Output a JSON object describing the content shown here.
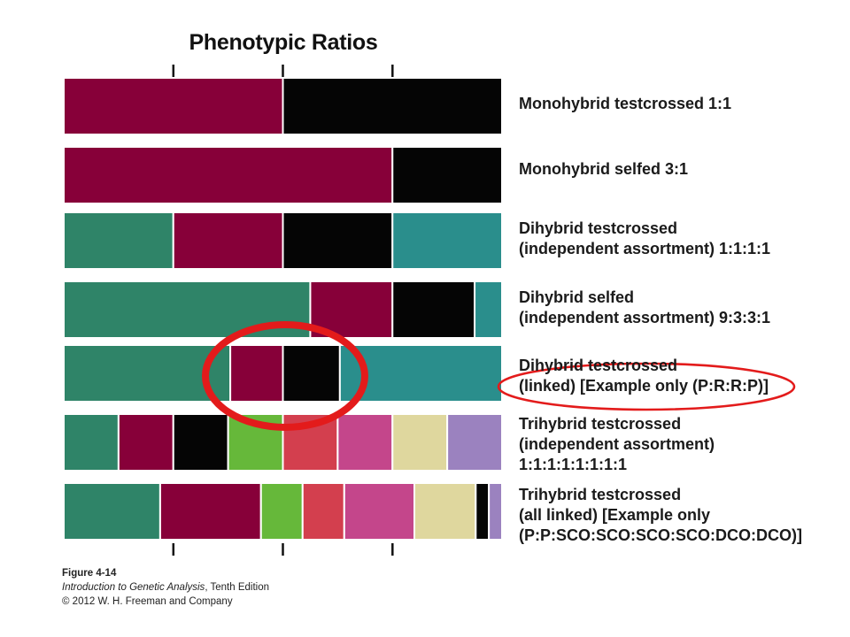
{
  "title": "Phenotypic Ratios",
  "colors": {
    "P1": "#2f8468",
    "R1": "#870039",
    "K": "#050505",
    "P2": "#2a8e8c",
    "G": "#66b83a",
    "RD": "#d33f4e",
    "PK": "#c4468b",
    "BG": "#dfd79e",
    "LV": "#9b82bf"
  },
  "rows": [
    {
      "label_lines": [
        "Monohybrid testcrossed 1:1"
      ],
      "segments": [
        {
          "fraction": 0.5,
          "color": "R1"
        },
        {
          "fraction": 0.5,
          "color": "K"
        }
      ]
    },
    {
      "label_lines": [
        "Monohybrid selfed 3:1"
      ],
      "segments": [
        {
          "fraction": 0.75,
          "color": "R1"
        },
        {
          "fraction": 0.25,
          "color": "K"
        }
      ]
    },
    {
      "label_lines": [
        "Dihybrid testcrossed",
        "(independent assortment) 1:1:1:1"
      ],
      "segments": [
        {
          "fraction": 0.25,
          "color": "P1"
        },
        {
          "fraction": 0.25,
          "color": "R1"
        },
        {
          "fraction": 0.25,
          "color": "K"
        },
        {
          "fraction": 0.25,
          "color": "P2"
        }
      ]
    },
    {
      "label_lines": [
        "Dihybrid selfed",
        "(independent assortment) 9:3:3:1"
      ],
      "segments": [
        {
          "fraction": 0.5625,
          "color": "P1"
        },
        {
          "fraction": 0.1875,
          "color": "R1"
        },
        {
          "fraction": 0.1875,
          "color": "K"
        },
        {
          "fraction": 0.0625,
          "color": "P2"
        }
      ]
    },
    {
      "label_lines": [
        "Dihybrid testcrossed",
        "(linked) [Example only (P:R:R:P)]"
      ],
      "segments": [
        {
          "fraction": 0.38,
          "color": "P1"
        },
        {
          "fraction": 0.12,
          "color": "R1"
        },
        {
          "fraction": 0.13,
          "color": "K"
        },
        {
          "fraction": 0.37,
          "color": "P2"
        }
      ]
    },
    {
      "label_lines": [
        "Trihybrid testcrossed",
        "(independent assortment)",
        "1:1:1:1:1:1:1:1"
      ],
      "segments": [
        {
          "fraction": 0.125,
          "color": "P1"
        },
        {
          "fraction": 0.125,
          "color": "R1"
        },
        {
          "fraction": 0.125,
          "color": "K"
        },
        {
          "fraction": 0.125,
          "color": "G"
        },
        {
          "fraction": 0.125,
          "color": "RD"
        },
        {
          "fraction": 0.125,
          "color": "PK"
        },
        {
          "fraction": 0.125,
          "color": "BG"
        },
        {
          "fraction": 0.125,
          "color": "LV"
        }
      ]
    },
    {
      "label_lines": [
        "Trihybrid testcrossed",
        "(all linked) [Example only",
        "(P:P:SCO:SCO:SCO:SCO:DCO:DCO)]"
      ],
      "segments": [
        {
          "fraction": 0.22,
          "color": "P1"
        },
        {
          "fraction": 0.23,
          "color": "R1"
        },
        {
          "fraction": 0.095,
          "color": "G"
        },
        {
          "fraction": 0.095,
          "color": "RD"
        },
        {
          "fraction": 0.16,
          "color": "PK"
        },
        {
          "fraction": 0.14,
          "color": "BG"
        },
        {
          "fraction": 0.03,
          "color": "K"
        },
        {
          "fraction": 0.03,
          "color": "LV"
        }
      ]
    }
  ],
  "tick_fractions": [
    0.25,
    0.5,
    0.75
  ],
  "annotations": {
    "highlight_color": "#e31b1b"
  },
  "caption": {
    "figure_number": "Figure 4-14",
    "book_title": "Introduction to Genetic Analysis",
    "edition": ", Tenth Edition",
    "copyright": "© 2012 W. H. Freeman and Company"
  }
}
